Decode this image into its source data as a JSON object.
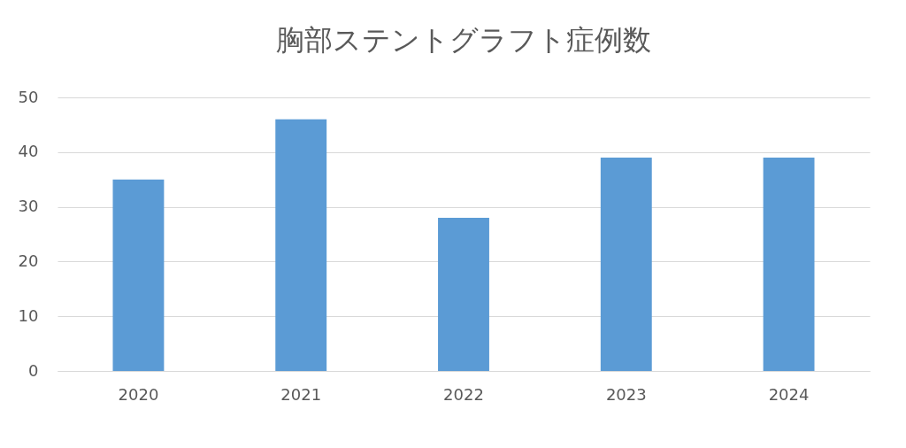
{
  "chart_data": {
    "type": "bar",
    "title": "胸部ステントグラフト症例数",
    "categories": [
      "2020",
      "2021",
      "2022",
      "2023",
      "2024"
    ],
    "values": [
      35,
      46,
      28,
      39,
      39
    ],
    "color": "#5b9bd5",
    "ylim": [
      0,
      50
    ],
    "yticks": [
      0,
      10,
      20,
      30,
      40,
      50
    ],
    "grid": "y"
  }
}
